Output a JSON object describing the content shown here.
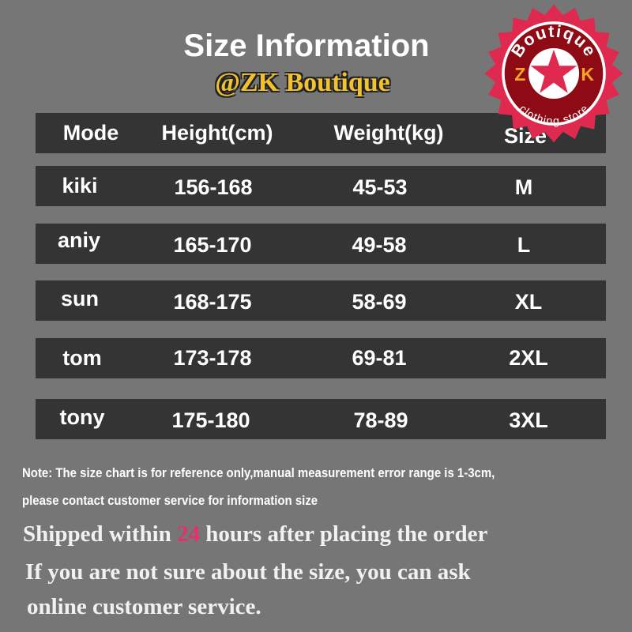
{
  "title": "Size Information",
  "subtitle": "@ZK Boutique",
  "logo": {
    "text_top": "Boutique",
    "left_letter": "Z",
    "right_letter": "K",
    "text_bottom": "clothing store",
    "colors": {
      "outer": "#e0294f",
      "inner": "#8e0a14",
      "letters": "#f5a623"
    }
  },
  "table": {
    "headers": [
      "Mode",
      "Height(cm)",
      "Weight(kg)",
      "Size"
    ],
    "rows": [
      [
        "kiki",
        "156-168",
        "45-53",
        "M"
      ],
      [
        "aniy",
        "165-170",
        "49-58",
        "L"
      ],
      [
        "sun",
        "168-175",
        "58-69",
        "XL"
      ],
      [
        "tom",
        "173-178",
        "69-81",
        "2XL"
      ],
      [
        "tony",
        "175-180",
        "78-89",
        "3XL"
      ]
    ]
  },
  "note": {
    "line1": "Note: The size chart is for reference only,manual measurement error range is 1-3cm,",
    "line2": "please contact customer service for information size"
  },
  "shipping": {
    "before": "Shipped within ",
    "hours": "24",
    "after": " hours after placing the order"
  },
  "advice": {
    "line1": "If you are not sure about the size, you can ask",
    "line2": "online customer service."
  },
  "colors": {
    "background": "#767676",
    "row": "#343434",
    "highlight": "#e5306b",
    "subtitle": "#f2c12e"
  }
}
